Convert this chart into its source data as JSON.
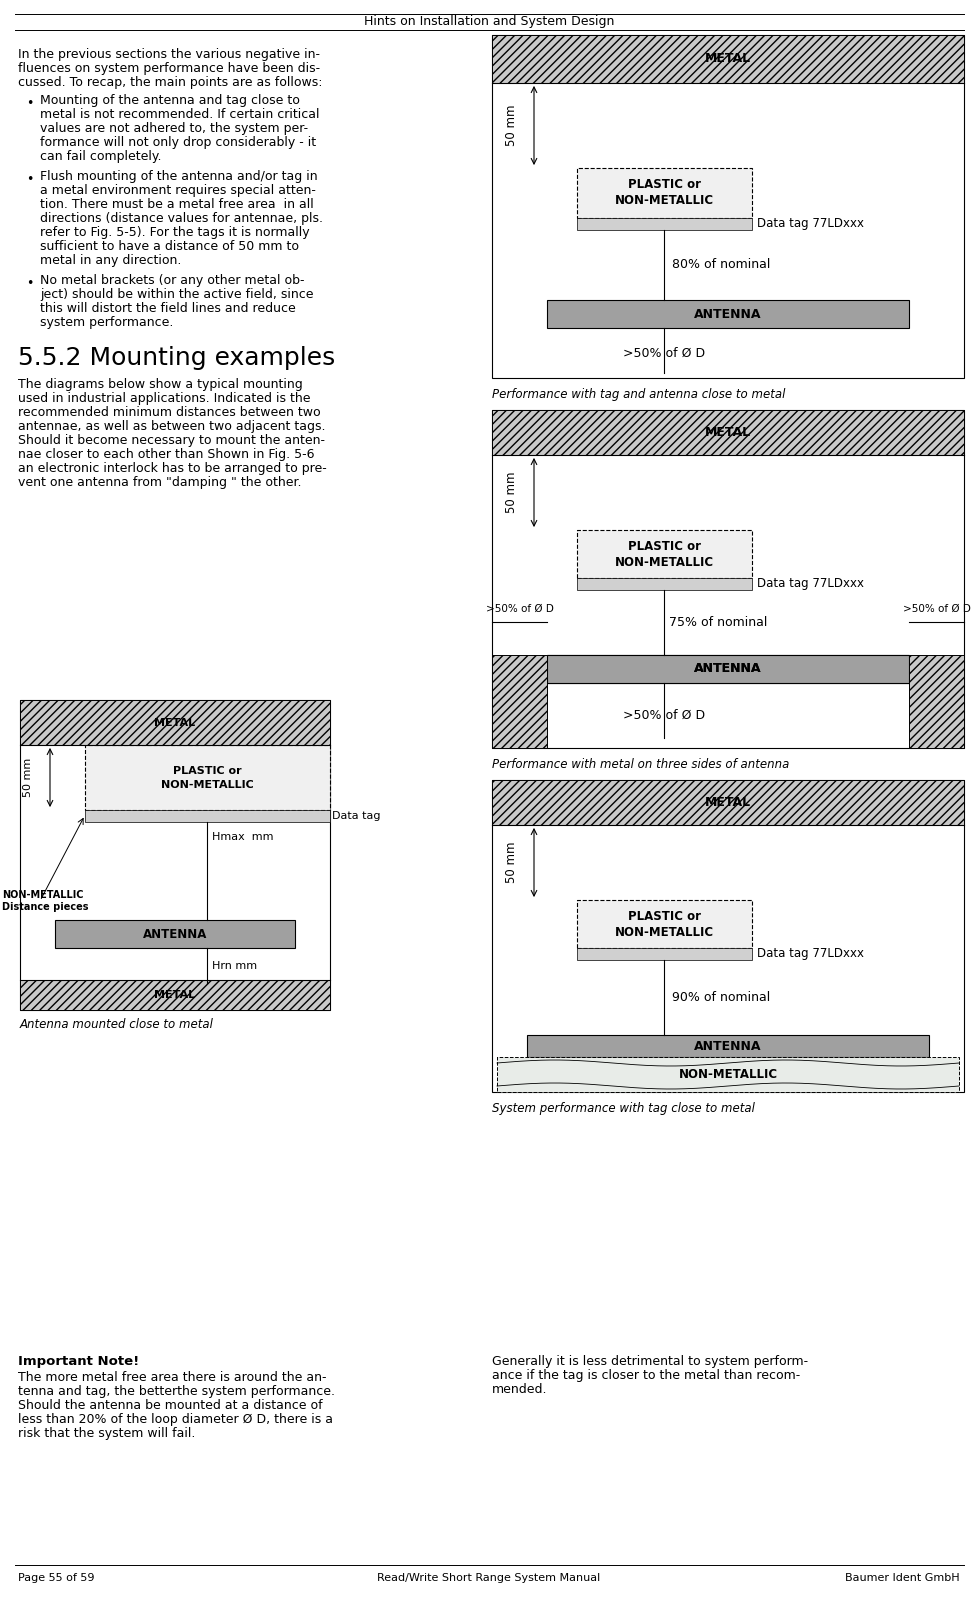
{
  "title": "Hints on Installation and System Design",
  "footer_left": "Page 55 of 59",
  "footer_center": "Read/Write Short Range System Manual",
  "footer_right": "Baumer Ident GmbH",
  "bg_color": "#ffffff",
  "intro_lines": [
    "In the previous sections the various negative in-",
    "fluences on system performance have been dis-",
    "cussed. To recap, the main points are as follows:"
  ],
  "bullets": [
    [
      "Mounting of the antenna and tag close to",
      "metal is not recommended. If certain critical",
      "values are not adhered to, the system per-",
      "formance will not only drop considerably - it",
      "can fail completely."
    ],
    [
      "Flush mounting of the antenna and/or tag in",
      "a metal environment requires special atten-",
      "tion. There must be a metal free area  in all",
      "directions (distance values for antennae, pls.",
      "refer to Fig. 5-5). For the tags it is normally",
      "sufficient to have a distance of 50 mm to",
      "metal in any direction."
    ],
    [
      "No metal brackets (or any other metal ob-",
      "ject) should be within the active field, since",
      "this will distort the field lines and reduce",
      "system performance."
    ]
  ],
  "section_title": "5.5.2 Mounting examples",
  "section_lines": [
    "The diagrams below show a typical mounting",
    "used in industrial applications. Indicated is the",
    "recommended minimum distances between two",
    "antennae, as well as between two adjacent tags.",
    "Should it become necessary to mount the anten-",
    "nae closer to each other than Shown in Fig. 5-6",
    "an electronic interlock has to be arranged to pre-",
    "vent one antenna from \"damping \" the other."
  ],
  "fig1_caption": "Performance with tag and antenna close to metal",
  "fig2_caption": "Performance with metal on three sides of antenna",
  "fig3_caption": "Antenna mounted close to metal",
  "fig4_caption": "System performance with tag close to metal",
  "important_title": "Important Note!",
  "important_lines": [
    "The more metal free area there is around the an-",
    "tenna and tag, the betterthe system performance.",
    "Should the antenna be mounted at a distance of",
    "less than 20% of the loop diameter Ø D, there is a",
    "risk that the system will fail."
  ],
  "general_lines": [
    "Generally it is less detrimental to system perform-",
    "ance if the tag is closer to the metal than recom-",
    "mended."
  ],
  "hatch_color": "#c8c8c8",
  "antenna_color": "#a0a0a0",
  "plastic_color": "#f0f0f0",
  "nonmetallic_bottom_color": "#e8e8e8"
}
